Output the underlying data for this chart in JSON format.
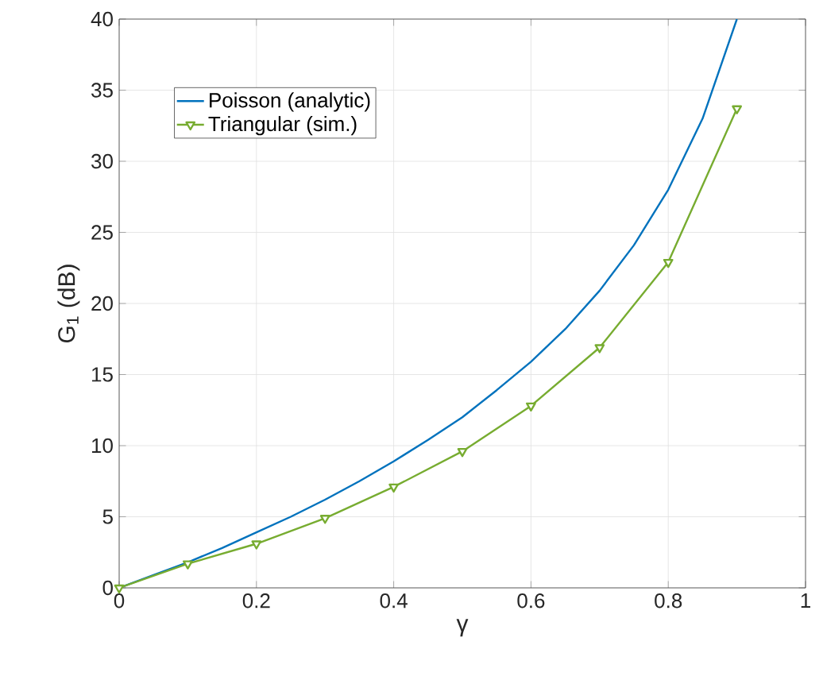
{
  "chart_data": {
    "type": "line",
    "xlabel": "γ",
    "ylabel": "G$_{1}$ (dB)",
    "xlim": [
      0,
      1
    ],
    "ylim": [
      0,
      40
    ],
    "xticks": [
      0,
      0.2,
      0.4,
      0.6,
      0.8,
      1
    ],
    "yticks": [
      0,
      5,
      10,
      15,
      20,
      25,
      30,
      35,
      40
    ],
    "grid": true,
    "legend": "top left",
    "series": [
      {
        "name": "Poisson (analytic)",
        "color": "#0072bd",
        "marker": "none",
        "x": [
          0,
          0.05,
          0.1,
          0.15,
          0.2,
          0.25,
          0.3,
          0.35,
          0.4,
          0.45,
          0.5,
          0.55,
          0.6,
          0.65,
          0.7,
          0.75,
          0.8,
          0.85,
          0.9
        ],
        "values": [
          0,
          0.9,
          1.8,
          2.8,
          3.9,
          5.0,
          6.2,
          7.5,
          8.9,
          10.4,
          12.0,
          13.9,
          15.9,
          18.2,
          20.9,
          24.1,
          28.0,
          33.0,
          40.0
        ]
      },
      {
        "name": "Triangular (sim.)",
        "color": "#77ac30",
        "marker": "triangle",
        "x": [
          0,
          0.1,
          0.2,
          0.3,
          0.4,
          0.5,
          0.6,
          0.7,
          0.8,
          0.9
        ],
        "values": [
          0,
          1.7,
          3.1,
          4.9,
          7.1,
          9.6,
          12.8,
          16.9,
          22.9,
          33.7
        ]
      }
    ]
  }
}
